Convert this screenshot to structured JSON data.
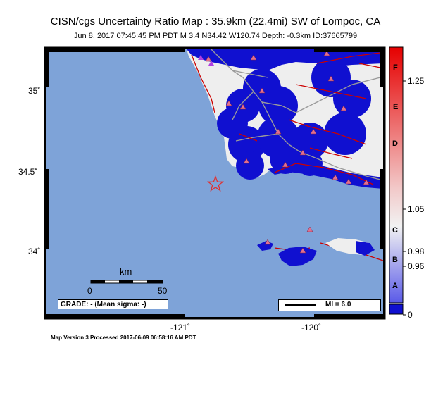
{
  "header": {
    "title": "CISN/cgs Uncertainty Ratio Map : 35.9km (22.4mi) SW of Lompoc, CA",
    "subtitle": "Jun  8, 2017 07:45:45 PM PDT   M 3.4   N34.42 W120.74   Depth: -0.3km   ID:37665799"
  },
  "axes": {
    "lat_ticks": [
      "35˚",
      "34.5˚",
      "34˚"
    ],
    "lon_ticks": [
      "-121˚",
      "-120˚"
    ]
  },
  "scale_bar": {
    "unit": "km",
    "start": "0",
    "end": "50"
  },
  "grade_box": "GRADE: - (Mean sigma: -)",
  "mi_legend": "MI = 6.0",
  "footer": "Map Version 3 Processed 2017-06-09 06:58:16 AM PDT",
  "color_bar": {
    "letters": [
      "F",
      "E",
      "D",
      "C",
      "B",
      "A"
    ],
    "values": [
      "1.25",
      "1.05",
      "0.98",
      "0.96",
      "0"
    ]
  },
  "colors": {
    "ocean": "#7ea3d8",
    "land": "#eeeeee",
    "uncertainty_blue": "#1010d0",
    "fault_red": "#cc0000",
    "station": "#e07090",
    "epicenter": "#e03030"
  }
}
